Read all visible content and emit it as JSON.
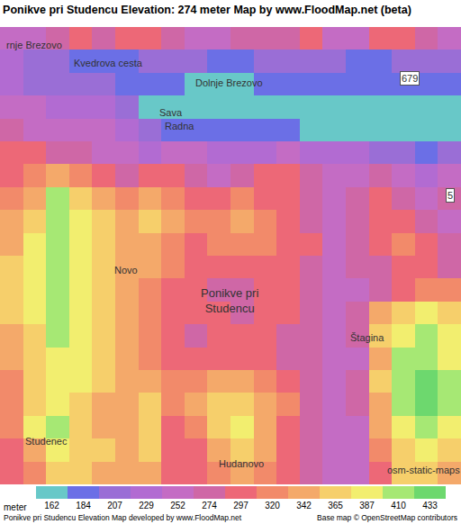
{
  "chart_data": {
    "type": "heatmap",
    "title": "Ponikve pri Studencu Elevation: 274 meter Map by www.FloodMap.net (beta)",
    "tick_labels": false,
    "grid": false,
    "cells": [
      [
        252,
        252,
        274,
        297,
        274,
        297,
        297,
        274,
        252,
        252,
        274,
        274,
        274,
        297,
        252,
        252,
        297,
        297,
        274,
        252
      ],
      [
        229,
        207,
        207,
        184,
        184,
        184,
        207,
        207,
        207,
        184,
        184,
        207,
        207,
        207,
        207,
        184,
        184,
        207,
        207,
        207
      ],
      [
        229,
        207,
        207,
        207,
        207,
        184,
        184,
        184,
        162,
        162,
        162,
        184,
        184,
        184,
        184,
        184,
        184,
        184,
        184,
        184
      ],
      [
        252,
        252,
        229,
        229,
        229,
        207,
        162,
        162,
        162,
        162,
        162,
        162,
        162,
        162,
        162,
        162,
        162,
        162,
        162,
        162
      ],
      [
        274,
        252,
        252,
        252,
        252,
        229,
        207,
        184,
        184,
        184,
        184,
        184,
        184,
        162,
        162,
        162,
        162,
        162,
        162,
        162
      ],
      [
        297,
        297,
        274,
        274,
        252,
        252,
        229,
        252,
        252,
        229,
        229,
        229,
        252,
        229,
        229,
        229,
        207,
        207,
        184,
        207
      ],
      [
        297,
        320,
        342,
        320,
        297,
        274,
        297,
        297,
        274,
        252,
        274,
        297,
        297,
        274,
        252,
        252,
        274,
        252,
        229,
        252
      ],
      [
        320,
        342,
        410,
        365,
        342,
        320,
        342,
        320,
        297,
        297,
        320,
        297,
        297,
        274,
        252,
        274,
        297,
        274,
        252,
        274
      ],
      [
        342,
        365,
        410,
        387,
        365,
        342,
        365,
        342,
        320,
        320,
        342,
        320,
        297,
        274,
        252,
        274,
        297,
        297,
        274,
        252
      ],
      [
        342,
        387,
        410,
        387,
        365,
        342,
        342,
        320,
        297,
        320,
        320,
        320,
        297,
        297,
        252,
        274,
        297,
        320,
        297,
        274
      ],
      [
        365,
        387,
        410,
        387,
        365,
        342,
        342,
        320,
        297,
        297,
        297,
        297,
        297,
        274,
        252,
        274,
        274,
        297,
        297,
        274
      ],
      [
        365,
        387,
        410,
        387,
        365,
        342,
        320,
        297,
        297,
        274,
        274,
        297,
        297,
        274,
        252,
        252,
        274,
        297,
        320,
        320
      ],
      [
        365,
        387,
        410,
        387,
        365,
        342,
        320,
        297,
        297,
        297,
        274,
        297,
        297,
        274,
        252,
        274,
        342,
        365,
        387,
        365
      ],
      [
        342,
        365,
        410,
        387,
        365,
        342,
        320,
        297,
        274,
        297,
        297,
        297,
        274,
        274,
        252,
        274,
        365,
        387,
        410,
        387
      ],
      [
        342,
        365,
        387,
        387,
        365,
        342,
        320,
        297,
        297,
        297,
        297,
        297,
        274,
        274,
        252,
        252,
        342,
        410,
        410,
        387
      ],
      [
        320,
        365,
        387,
        387,
        365,
        342,
        342,
        320,
        320,
        342,
        342,
        320,
        297,
        274,
        252,
        274,
        365,
        410,
        433,
        410
      ],
      [
        320,
        365,
        387,
        365,
        342,
        342,
        365,
        320,
        342,
        365,
        365,
        342,
        320,
        274,
        252,
        274,
        342,
        410,
        433,
        410
      ],
      [
        320,
        387,
        410,
        365,
        342,
        342,
        365,
        297,
        320,
        365,
        387,
        342,
        297,
        274,
        252,
        252,
        342,
        387,
        410,
        387
      ],
      [
        297,
        342,
        387,
        365,
        365,
        342,
        365,
        297,
        297,
        342,
        365,
        342,
        297,
        274,
        252,
        252,
        320,
        365,
        387,
        365
      ],
      [
        297,
        320,
        365,
        365,
        342,
        342,
        342,
        297,
        297,
        320,
        342,
        320,
        297,
        274,
        252,
        252,
        297,
        365,
        365,
        342
      ]
    ],
    "colorbar": {
      "label": "meter",
      "levels": [
        162,
        184,
        207,
        229,
        252,
        274,
        297,
        320,
        342,
        365,
        387,
        410,
        433
      ],
      "colors": [
        "#68c8c8",
        "#6b6fe6",
        "#9a6ed6",
        "#b26bd2",
        "#c46cc4",
        "#cf67a6",
        "#ed6877",
        "#f28a6a",
        "#f4a96a",
        "#f6cf6b",
        "#f2ee6f",
        "#a6e874",
        "#6dd86e"
      ]
    },
    "annotations": [
      {
        "lines": [
          "rnje Brezovo"
        ],
        "x": 0.98,
        "y": 0.29
      },
      {
        "lines": [
          "Kvedrova cesta"
        ],
        "x": 4.19,
        "y": 1.07
      },
      {
        "lines": [
          "Dolnje Brezovo"
        ],
        "x": 9.46,
        "y": 1.94
      },
      {
        "lines": [
          "679"
        ],
        "x": 17.27,
        "y": 1.74,
        "marker": "box"
      },
      {
        "lines": [
          "Sava"
        ],
        "x": 6.92,
        "y": 3.24
      },
      {
        "lines": [
          "Radna"
        ],
        "x": 7.3,
        "y": 3.83
      },
      {
        "lines": [
          "5"
        ],
        "x": 19.03,
        "y": 6.86,
        "marker": "box"
      },
      {
        "lines": [
          "Novo"
        ],
        "x": 4.97,
        "y": 10.13
      },
      {
        "lines": [
          "Ponikve pri",
          "Studencu"
        ],
        "x": 9.46,
        "y": 11.47
      },
      {
        "lines": [
          "Štagina"
        ],
        "x": 15.44,
        "y": 13.08
      },
      {
        "lines": [
          "Studenec"
        ],
        "x": 1.5,
        "y": 17.6
      },
      {
        "lines": [
          "Hudanovo"
        ],
        "x": 9.97,
        "y": 18.6
      },
      {
        "lines": [
          "osm-static-maps"
        ],
        "x": 17.86,
        "y": 18.87
      }
    ],
    "footer": {
      "left": "Ponikve pri Studencu Elevation Map developed by www.FloodMap.net",
      "right": "Base map © OpenStreetMap contributors"
    }
  }
}
